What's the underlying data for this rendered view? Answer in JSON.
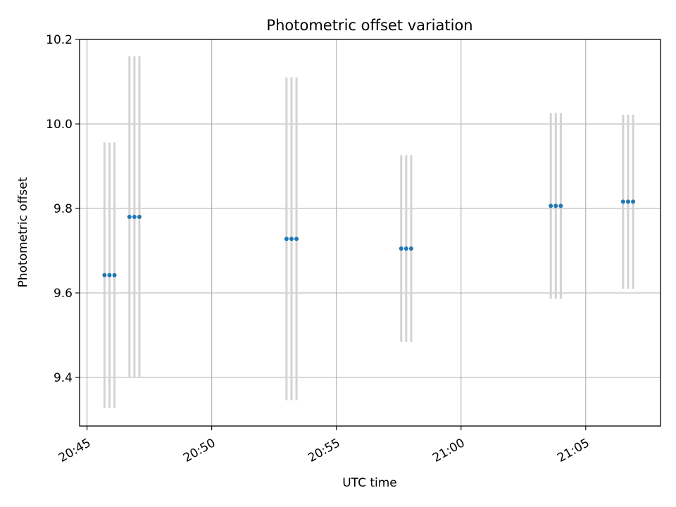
{
  "chart_data": {
    "type": "scatter",
    "title": "Photometric offset variation",
    "xlabel": "UTC time",
    "ylabel": "Photometric offset",
    "x_ticks": [
      "20:45",
      "20:50",
      "20:55",
      "21:00",
      "21:05"
    ],
    "y_ticks": [
      "9.4",
      "9.6",
      "9.8",
      "10.0",
      "10.2"
    ],
    "xlim": [
      "20:44:42",
      "21:08:00"
    ],
    "ylim": [
      9.285,
      10.2
    ],
    "grid": true,
    "colors": {
      "points": "#1f77b4",
      "error_bars": "#d3d3d3",
      "grid": "#b0b0b0"
    },
    "series": [
      {
        "points": [
          {
            "x": "20:45:42",
            "y": 9.642,
            "err_low": 9.328,
            "err_high": 9.956
          },
          {
            "x": "20:45:54",
            "y": 9.642,
            "err_low": 9.328,
            "err_high": 9.956
          },
          {
            "x": "20:46:06",
            "y": 9.642,
            "err_low": 9.328,
            "err_high": 9.956
          },
          {
            "x": "20:46:42",
            "y": 9.78,
            "err_low": 9.4,
            "err_high": 10.16
          },
          {
            "x": "20:46:54",
            "y": 9.78,
            "err_low": 9.4,
            "err_high": 10.16
          },
          {
            "x": "20:47:06",
            "y": 9.78,
            "err_low": 9.4,
            "err_high": 10.16
          },
          {
            "x": "20:53:00",
            "y": 9.728,
            "err_low": 9.346,
            "err_high": 10.11
          },
          {
            "x": "20:53:12",
            "y": 9.728,
            "err_low": 9.346,
            "err_high": 10.11
          },
          {
            "x": "20:53:24",
            "y": 9.728,
            "err_low": 9.346,
            "err_high": 10.11
          },
          {
            "x": "20:57:36",
            "y": 9.705,
            "err_low": 9.484,
            "err_high": 9.926
          },
          {
            "x": "20:57:48",
            "y": 9.705,
            "err_low": 9.484,
            "err_high": 9.926
          },
          {
            "x": "20:58:00",
            "y": 9.705,
            "err_low": 9.484,
            "err_high": 9.926
          },
          {
            "x": "21:03:36",
            "y": 9.806,
            "err_low": 9.586,
            "err_high": 10.026
          },
          {
            "x": "21:03:48",
            "y": 9.806,
            "err_low": 9.586,
            "err_high": 10.026
          },
          {
            "x": "21:04:00",
            "y": 9.806,
            "err_low": 9.586,
            "err_high": 10.026
          },
          {
            "x": "21:06:30",
            "y": 9.816,
            "err_low": 9.61,
            "err_high": 10.022
          },
          {
            "x": "21:06:42",
            "y": 9.816,
            "err_low": 9.61,
            "err_high": 10.022
          },
          {
            "x": "21:06:54",
            "y": 9.816,
            "err_low": 9.61,
            "err_high": 10.022
          }
        ]
      }
    ]
  }
}
